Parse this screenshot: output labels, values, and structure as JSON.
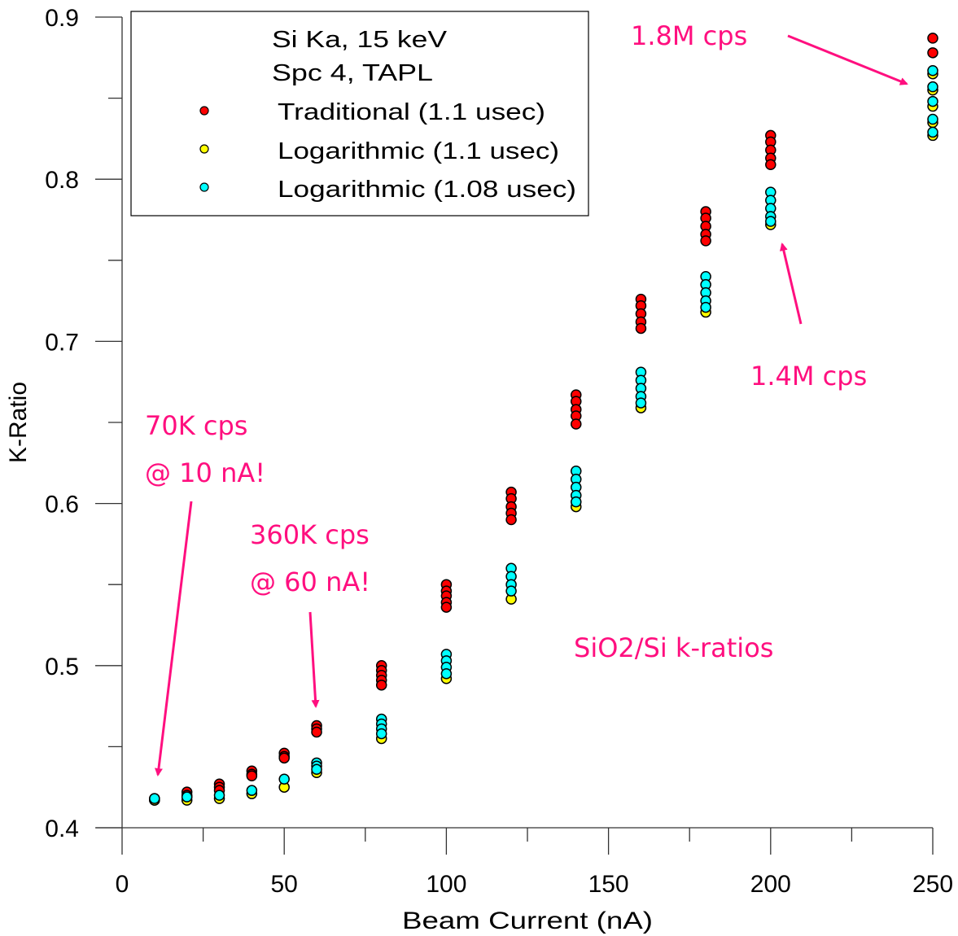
{
  "chart_data": {
    "type": "scatter",
    "title": "",
    "xlabel": "Beam Current (nA)",
    "ylabel": "K-Ratio",
    "xlim": [
      0,
      250
    ],
    "ylim": [
      0.4,
      0.9
    ],
    "x_ticks": [
      0,
      50,
      100,
      150,
      200,
      250
    ],
    "x_tick_labels": [
      "0",
      "50",
      "100",
      "150",
      "200",
      "250"
    ],
    "x_minor_step": 25,
    "y_ticks": [
      0.4,
      0.5,
      0.6,
      0.7,
      0.8,
      0.9
    ],
    "y_tick_labels": [
      "0.4",
      "0.5",
      "0.6",
      "0.7",
      "0.8",
      "0.9"
    ],
    "y_minor_step": 0.05,
    "grid": false,
    "legend": {
      "placement": "top-left",
      "header": [
        "Si Ka, 15 keV",
        "Spc 4, TAPL"
      ],
      "entries": [
        {
          "label": "Traditional (1.1 usec)",
          "color": "#ff0000"
        },
        {
          "label": "Logarithmic (1.1 usec)",
          "color": "#ffff00"
        },
        {
          "label": "Logarithmic (1.08 usec)",
          "color": "#00ffff"
        }
      ]
    },
    "series": [
      {
        "name": "Traditional (1.1 usec)",
        "color": "#ff0000",
        "points": [
          [
            10,
            0.418
          ],
          [
            10,
            0.417
          ],
          [
            20,
            0.422
          ],
          [
            20,
            0.42
          ],
          [
            20,
            0.419
          ],
          [
            30,
            0.427
          ],
          [
            30,
            0.425
          ],
          [
            30,
            0.423
          ],
          [
            40,
            0.435
          ],
          [
            40,
            0.433
          ],
          [
            40,
            0.432
          ],
          [
            50,
            0.446
          ],
          [
            50,
            0.444
          ],
          [
            50,
            0.443
          ],
          [
            60,
            0.463
          ],
          [
            60,
            0.461
          ],
          [
            60,
            0.459
          ],
          [
            80,
            0.5
          ],
          [
            80,
            0.497
          ],
          [
            80,
            0.494
          ],
          [
            80,
            0.491
          ],
          [
            80,
            0.488
          ],
          [
            100,
            0.55
          ],
          [
            100,
            0.546
          ],
          [
            100,
            0.543
          ],
          [
            100,
            0.539
          ],
          [
            100,
            0.536
          ],
          [
            120,
            0.607
          ],
          [
            120,
            0.603
          ],
          [
            120,
            0.598
          ],
          [
            120,
            0.594
          ],
          [
            120,
            0.59
          ],
          [
            140,
            0.667
          ],
          [
            140,
            0.663
          ],
          [
            140,
            0.658
          ],
          [
            140,
            0.654
          ],
          [
            140,
            0.649
          ],
          [
            160,
            0.726
          ],
          [
            160,
            0.722
          ],
          [
            160,
            0.717
          ],
          [
            160,
            0.712
          ],
          [
            160,
            0.708
          ],
          [
            180,
            0.78
          ],
          [
            180,
            0.776
          ],
          [
            180,
            0.771
          ],
          [
            180,
            0.766
          ],
          [
            180,
            0.762
          ],
          [
            200,
            0.827
          ],
          [
            200,
            0.823
          ],
          [
            200,
            0.818
          ],
          [
            200,
            0.813
          ],
          [
            200,
            0.809
          ],
          [
            250,
            0.887
          ],
          [
            250,
            0.878
          ]
        ]
      },
      {
        "name": "Logarithmic (1.1 usec)",
        "color": "#ffff00",
        "points": [
          [
            10,
            0.417
          ],
          [
            20,
            0.417
          ],
          [
            30,
            0.418
          ],
          [
            40,
            0.421
          ],
          [
            50,
            0.425
          ],
          [
            60,
            0.434
          ],
          [
            80,
            0.455
          ],
          [
            100,
            0.492
          ],
          [
            120,
            0.541
          ],
          [
            140,
            0.598
          ],
          [
            160,
            0.659
          ],
          [
            180,
            0.718
          ],
          [
            200,
            0.772
          ],
          [
            250,
            0.865
          ],
          [
            250,
            0.855
          ],
          [
            250,
            0.845
          ],
          [
            250,
            0.835
          ],
          [
            250,
            0.827
          ]
        ]
      },
      {
        "name": "Logarithmic (1.08 usec)",
        "color": "#00ffff",
        "points": [
          [
            10,
            0.418
          ],
          [
            20,
            0.419
          ],
          [
            30,
            0.42
          ],
          [
            40,
            0.423
          ],
          [
            50,
            0.43
          ],
          [
            60,
            0.44
          ],
          [
            60,
            0.438
          ],
          [
            60,
            0.436
          ],
          [
            80,
            0.467
          ],
          [
            80,
            0.464
          ],
          [
            80,
            0.461
          ],
          [
            80,
            0.458
          ],
          [
            100,
            0.507
          ],
          [
            100,
            0.503
          ],
          [
            100,
            0.499
          ],
          [
            100,
            0.495
          ],
          [
            120,
            0.56
          ],
          [
            120,
            0.555
          ],
          [
            120,
            0.55
          ],
          [
            120,
            0.546
          ],
          [
            140,
            0.62
          ],
          [
            140,
            0.615
          ],
          [
            140,
            0.61
          ],
          [
            140,
            0.605
          ],
          [
            140,
            0.601
          ],
          [
            160,
            0.681
          ],
          [
            160,
            0.676
          ],
          [
            160,
            0.671
          ],
          [
            160,
            0.666
          ],
          [
            160,
            0.662
          ],
          [
            180,
            0.74
          ],
          [
            180,
            0.735
          ],
          [
            180,
            0.73
          ],
          [
            180,
            0.725
          ],
          [
            180,
            0.721
          ],
          [
            200,
            0.792
          ],
          [
            200,
            0.787
          ],
          [
            200,
            0.782
          ],
          [
            200,
            0.777
          ],
          [
            200,
            0.774
          ],
          [
            250,
            0.867
          ],
          [
            250,
            0.857
          ],
          [
            250,
            0.848
          ],
          [
            250,
            0.837
          ],
          [
            250,
            0.829
          ]
        ]
      }
    ],
    "annotations": [
      {
        "lines": [
          "1.8M cps"
        ],
        "anchor_x": 200,
        "anchor_y": 0.887,
        "arrow_to": [
          250,
          0.858
        ]
      },
      {
        "lines": [
          "1.4M cps"
        ],
        "anchor_x": 193,
        "anchor_y": 0.68,
        "arrow_to": [
          202,
          0.765
        ]
      },
      {
        "lines": [
          "70K cps",
          "@ 10 nA!"
        ],
        "anchor_x": 7,
        "anchor_y": 0.65,
        "arrow_to": [
          11,
          0.43
        ]
      },
      {
        "lines": [
          "360K cps",
          "@ 60 nA!"
        ],
        "anchor_x": 39,
        "anchor_y": 0.58,
        "arrow_to": [
          60,
          0.471
        ]
      },
      {
        "lines": [
          "SiO2/Si k-ratios"
        ],
        "anchor_x": 138,
        "anchor_y": 0.511
      }
    ],
    "annotation_color": "#ff0f7f"
  }
}
